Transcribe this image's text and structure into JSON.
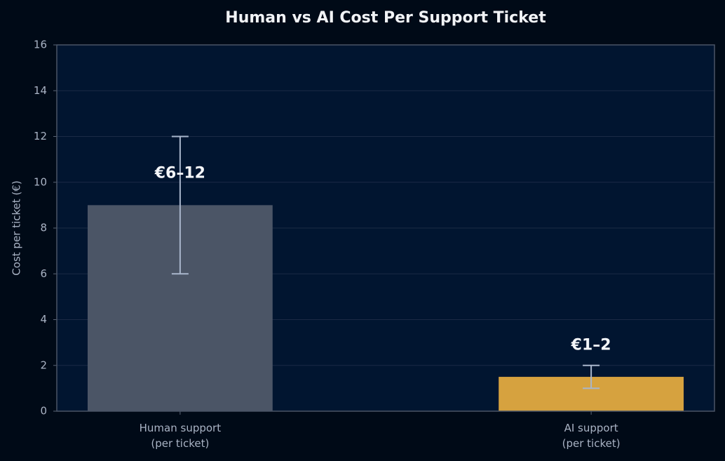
{
  "chart_data": {
    "type": "bar",
    "title": "Human vs AI Cost Per Support Ticket",
    "y_label": "Cost per ticket (€)",
    "categories": [
      "Human support\n(per ticket)",
      "AI support\n(per ticket)"
    ],
    "values": [
      9,
      1.5
    ],
    "errors": [
      3,
      0.5
    ],
    "annotations": [
      "€6–12",
      "€1–2"
    ],
    "colors": [
      "#4b5566",
      "#d6a23f"
    ],
    "error_color": "#a9b6cc",
    "ylim": [
      0,
      16
    ],
    "yticks": [
      0,
      2,
      4,
      6,
      8,
      10,
      12,
      14,
      16
    ],
    "grid": true
  }
}
